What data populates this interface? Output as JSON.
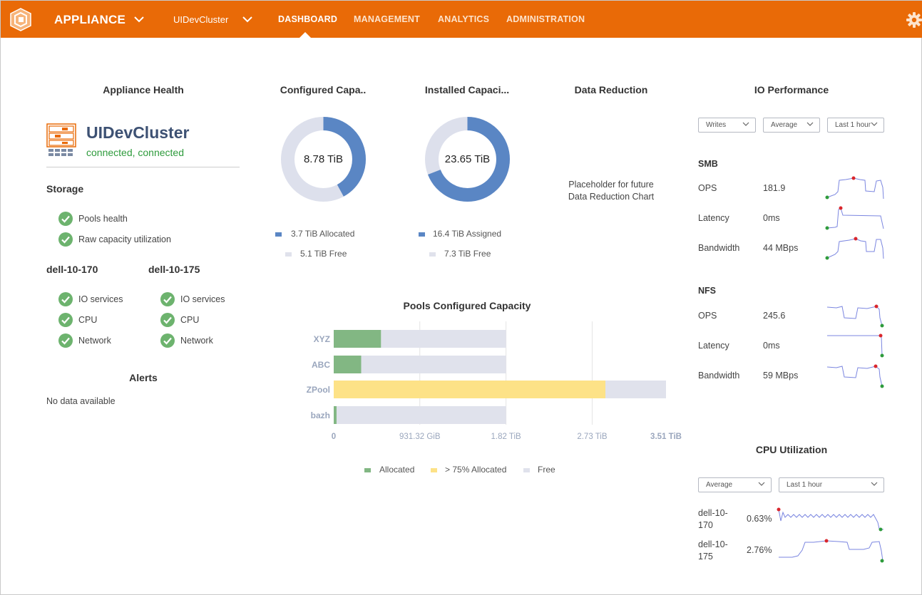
{
  "header": {
    "app_name": "APPLIANCE",
    "cluster_name": "UIDevCluster",
    "nav": [
      "DASHBOARD",
      "MANAGEMENT",
      "ANALYTICS",
      "ADMINISTRATION"
    ],
    "active_nav": "DASHBOARD",
    "brand_color": "#e96a07"
  },
  "appliance_health": {
    "title": "Appliance Health",
    "cluster_name": "UIDevCluster",
    "status": "connected, connected",
    "storage_title": "Storage",
    "storage_items": [
      "Pools health",
      "Raw capacity utilization"
    ],
    "nodes": [
      {
        "name": "dell-10-170",
        "items": [
          "IO services",
          "CPU",
          "Network"
        ]
      },
      {
        "name": "dell-10-175",
        "items": [
          "IO services",
          "CPU",
          "Network"
        ]
      }
    ],
    "alerts_title": "Alerts",
    "alerts_empty": "No data available"
  },
  "configured_capacity": {
    "title": "Configured Capa..",
    "center": "8.78 TiB",
    "legend": [
      "3.7 TiB Allocated",
      "5.1 TiB Free"
    ],
    "fraction_filled": 0.42
  },
  "installed_capacity": {
    "title": "Installed Capaci...",
    "center": "23.65 TiB",
    "legend": [
      "16.4 TiB Assigned",
      "7.3 TiB Free"
    ],
    "fraction_filled": 0.69
  },
  "data_reduction": {
    "title": "Data Reduction",
    "placeholder_line1": "Placeholder for future",
    "placeholder_line2": "Data Reduction Chart"
  },
  "pools_chart": {
    "title": "Pools Configured Capacity",
    "legend": [
      "Allocated",
      "> 75% Allocated",
      "Free"
    ],
    "colors": {
      "allocated": "#82b783",
      "high": "#fde287",
      "free": "#e0e2ec"
    }
  },
  "chart_data": {
    "type": "bar",
    "orientation": "horizontal",
    "stacked": true,
    "categories": [
      "XYZ",
      "ABC",
      "ZPool",
      "bazh"
    ],
    "x_ticks": [
      "0",
      "931.32 GiB",
      "1.82 TiB",
      "2.73 TiB",
      "3.51 TiB"
    ],
    "xlim": [
      0,
      3.51
    ],
    "series": [
      {
        "name": "Allocated",
        "values": [
          0.5,
          0.29,
          0,
          0.03
        ]
      },
      {
        "name": "> 75% Allocated",
        "values": [
          0,
          0,
          2.87,
          0
        ]
      },
      {
        "name": "Free",
        "values": [
          1.32,
          1.53,
          0.64,
          1.79
        ]
      }
    ],
    "grid": true,
    "legend_position": "bottom"
  },
  "io_performance": {
    "title": "IO Performance",
    "dropdowns": [
      "Writes",
      "Average",
      "Last 1 hour"
    ],
    "groups": [
      {
        "name": "SMB",
        "rows": [
          {
            "label": "OPS",
            "value": "181.9"
          },
          {
            "label": "Latency",
            "value": "0ms"
          },
          {
            "label": "Bandwidth",
            "value": "44 MBps"
          }
        ]
      },
      {
        "name": "NFS",
        "rows": [
          {
            "label": "OPS",
            "value": "245.6"
          },
          {
            "label": "Latency",
            "value": "0ms"
          },
          {
            "label": "Bandwidth",
            "value": "59 MBps"
          }
        ]
      }
    ]
  },
  "cpu_utilization": {
    "title": "CPU Utilization",
    "dropdowns": [
      "Average",
      "Last 1 hour"
    ],
    "rows": [
      {
        "line1": "dell-10-",
        "line2": "170",
        "value": "0.63%"
      },
      {
        "line1": "dell-10-",
        "line2": "175",
        "value": "2.76%"
      }
    ]
  }
}
